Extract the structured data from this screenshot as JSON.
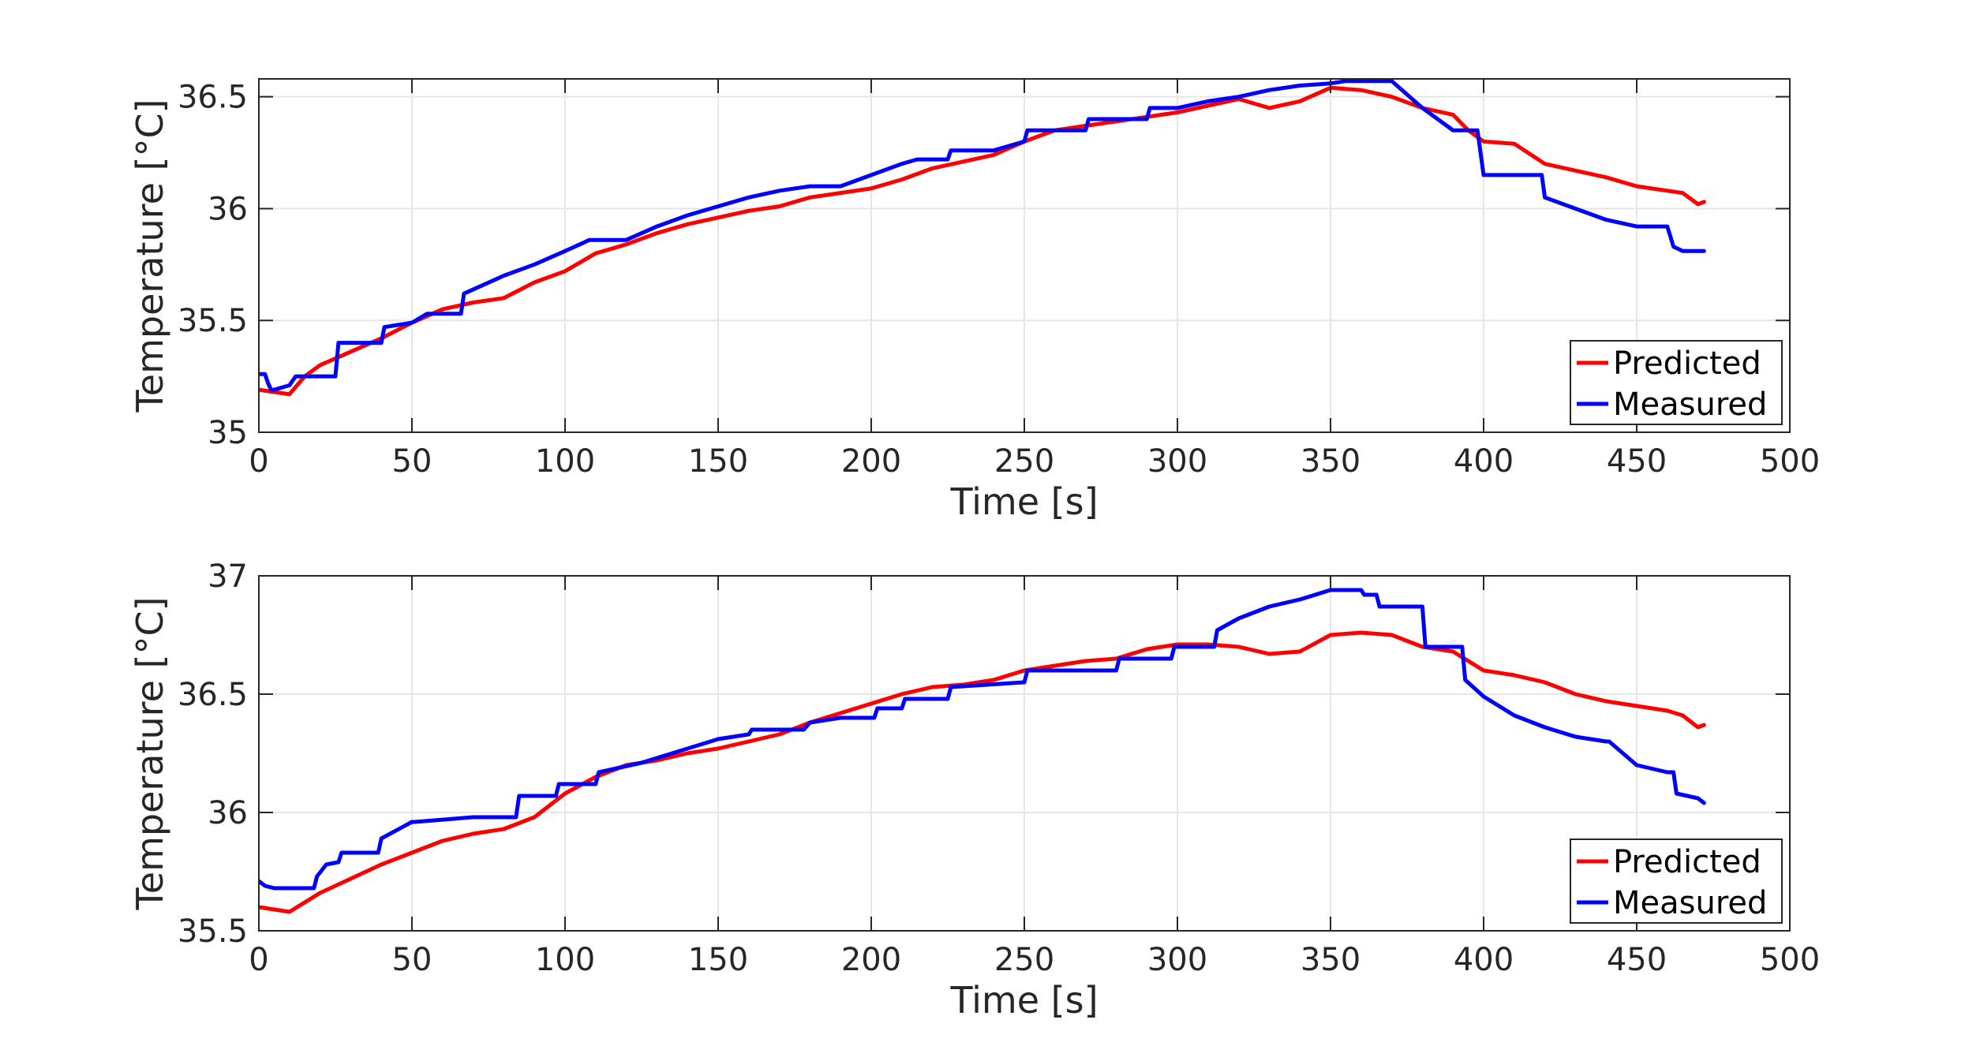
{
  "chart_data": [
    {
      "type": "line",
      "xlabel": "Time [s]",
      "ylabel": "Temperature [°C]",
      "xlim": [
        0,
        500
      ],
      "ylim": [
        35,
        36.58
      ],
      "xticks": [
        0,
        50,
        100,
        150,
        200,
        250,
        300,
        350,
        400,
        450,
        500
      ],
      "xtick_labels": [
        "0",
        "50",
        "100",
        "150",
        "200",
        "250",
        "300",
        "350",
        "400",
        "450",
        "500"
      ],
      "yticks": [
        35,
        35.5,
        36,
        36.5
      ],
      "ytick_labels": [
        "35",
        "35.5",
        "36",
        "36.5"
      ],
      "grid": true,
      "legend_position": "bottom-right",
      "series": [
        {
          "name": "Predicted",
          "color": "#ff0000",
          "x": [
            0,
            5,
            10,
            15,
            20,
            25,
            30,
            40,
            50,
            60,
            70,
            80,
            90,
            100,
            110,
            120,
            130,
            140,
            150,
            160,
            170,
            180,
            190,
            200,
            210,
            220,
            230,
            240,
            250,
            260,
            270,
            280,
            290,
            300,
            310,
            320,
            330,
            340,
            350,
            360,
            370,
            380,
            390,
            395,
            400,
            410,
            420,
            430,
            440,
            450,
            460,
            465,
            470,
            472
          ],
          "y": [
            35.19,
            35.18,
            35.17,
            35.25,
            35.3,
            35.33,
            35.36,
            35.42,
            35.49,
            35.55,
            35.58,
            35.6,
            35.67,
            35.72,
            35.8,
            35.84,
            35.89,
            35.93,
            35.96,
            35.99,
            36.01,
            36.05,
            36.07,
            36.09,
            36.13,
            36.18,
            36.21,
            36.24,
            36.3,
            36.35,
            36.37,
            36.39,
            36.41,
            36.43,
            36.46,
            36.49,
            36.45,
            36.48,
            36.54,
            36.53,
            36.5,
            36.45,
            36.42,
            36.35,
            36.3,
            36.29,
            36.2,
            36.17,
            36.14,
            36.1,
            36.08,
            36.07,
            36.02,
            36.03
          ]
        },
        {
          "name": "Measured",
          "color": "#0000ff",
          "x": [
            0,
            2,
            3,
            4,
            5,
            10,
            12,
            25,
            26,
            40,
            41,
            50,
            55,
            66,
            67,
            80,
            90,
            100,
            108,
            109,
            120,
            130,
            140,
            150,
            160,
            170,
            180,
            190,
            200,
            210,
            215,
            225,
            226,
            240,
            250,
            251,
            270,
            271,
            290,
            291,
            300,
            310,
            320,
            330,
            340,
            350,
            355,
            360,
            370,
            380,
            390,
            398,
            399,
            400,
            410,
            419,
            420,
            430,
            440,
            450,
            451,
            460,
            462,
            465,
            472
          ],
          "y": [
            35.26,
            35.26,
            35.22,
            35.19,
            35.19,
            35.21,
            35.25,
            35.25,
            35.4,
            35.4,
            35.47,
            35.49,
            35.53,
            35.53,
            35.62,
            35.7,
            35.75,
            35.81,
            35.86,
            35.86,
            35.86,
            35.92,
            35.97,
            36.01,
            36.05,
            36.08,
            36.1,
            36.1,
            36.15,
            36.2,
            36.22,
            36.22,
            36.26,
            36.26,
            36.3,
            36.35,
            36.35,
            36.4,
            36.4,
            36.45,
            36.45,
            36.48,
            36.5,
            36.53,
            36.55,
            36.56,
            36.57,
            36.57,
            36.57,
            36.45,
            36.35,
            36.35,
            36.25,
            36.15,
            36.15,
            36.15,
            36.05,
            36.0,
            35.95,
            35.92,
            35.92,
            35.92,
            35.83,
            35.81,
            35.81
          ]
        }
      ]
    },
    {
      "type": "line",
      "xlabel": "Time [s]",
      "ylabel": "Temperature [°C]",
      "xlim": [
        0,
        500
      ],
      "ylim": [
        35.5,
        37
      ],
      "xticks": [
        0,
        50,
        100,
        150,
        200,
        250,
        300,
        350,
        400,
        450,
        500
      ],
      "xtick_labels": [
        "0",
        "50",
        "100",
        "150",
        "200",
        "250",
        "300",
        "350",
        "400",
        "450",
        "500"
      ],
      "yticks": [
        35.5,
        36,
        36.5,
        37
      ],
      "ytick_labels": [
        "35.5",
        "36",
        "36.5",
        "37"
      ],
      "grid": true,
      "legend_position": "bottom-right",
      "series": [
        {
          "name": "Predicted",
          "color": "#ff0000",
          "x": [
            0,
            5,
            10,
            15,
            20,
            30,
            40,
            50,
            60,
            70,
            80,
            90,
            100,
            110,
            120,
            130,
            140,
            150,
            160,
            170,
            180,
            190,
            200,
            210,
            220,
            230,
            240,
            250,
            260,
            270,
            280,
            290,
            300,
            310,
            320,
            330,
            340,
            350,
            360,
            370,
            380,
            390,
            400,
            410,
            420,
            430,
            440,
            450,
            460,
            465,
            470,
            472
          ],
          "y": [
            35.6,
            35.59,
            35.58,
            35.62,
            35.66,
            35.72,
            35.78,
            35.83,
            35.88,
            35.91,
            35.93,
            35.98,
            36.08,
            36.15,
            36.2,
            36.22,
            36.25,
            36.27,
            36.3,
            36.33,
            36.38,
            36.42,
            36.46,
            36.5,
            36.53,
            36.54,
            36.56,
            36.6,
            36.62,
            36.64,
            36.65,
            36.69,
            36.71,
            36.71,
            36.7,
            36.67,
            36.68,
            36.75,
            36.76,
            36.75,
            36.7,
            36.68,
            36.6,
            36.58,
            36.55,
            36.5,
            36.47,
            36.45,
            36.43,
            36.41,
            36.36,
            36.37
          ]
        },
        {
          "name": "Measured",
          "color": "#0000ff",
          "x": [
            0,
            2,
            5,
            18,
            19,
            22,
            26,
            27,
            39,
            40,
            50,
            51,
            70,
            84,
            85,
            97,
            98,
            110,
            111,
            125,
            140,
            150,
            160,
            161,
            178,
            180,
            190,
            201,
            202,
            210,
            211,
            225,
            226,
            250,
            251,
            280,
            281,
            298,
            299,
            312,
            313,
            320,
            330,
            340,
            350,
            360,
            361,
            365,
            366,
            380,
            381,
            393,
            394,
            400,
            410,
            420,
            430,
            440,
            441,
            450,
            460,
            461,
            462,
            463,
            470,
            472
          ],
          "y": [
            35.71,
            35.69,
            35.68,
            35.68,
            35.73,
            35.78,
            35.79,
            35.83,
            35.83,
            35.89,
            35.96,
            35.96,
            35.98,
            35.98,
            36.07,
            36.07,
            36.12,
            36.12,
            36.17,
            36.21,
            36.27,
            36.31,
            36.33,
            36.35,
            36.35,
            36.38,
            36.4,
            36.4,
            36.44,
            36.44,
            36.48,
            36.48,
            36.53,
            36.55,
            36.6,
            36.6,
            36.65,
            36.65,
            36.7,
            36.7,
            36.77,
            36.82,
            36.87,
            36.9,
            36.94,
            36.94,
            36.92,
            36.92,
            36.87,
            36.87,
            36.7,
            36.7,
            36.56,
            36.49,
            36.41,
            36.36,
            36.32,
            36.3,
            36.3,
            36.2,
            36.17,
            36.17,
            36.17,
            36.08,
            36.06,
            36.04
          ]
        }
      ]
    }
  ]
}
